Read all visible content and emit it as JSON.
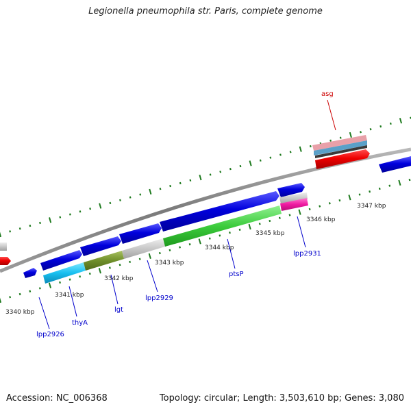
{
  "title": "Legionella pneumophila str. Paris, complete genome",
  "footer": {
    "accession": "Accession: NC_006368",
    "stats": "Topology: circular; Length: 3,503,610 bp; Genes: 3,080"
  },
  "colors": {
    "backbone": "#8a8a8a",
    "tick": "#1e7a1e",
    "cds_forward": "#0000dd",
    "cds_reverse": "#ee0000",
    "gene_label": "#0000cc",
    "rna_label": "#cc0000"
  },
  "kbp_labels": [
    "3340 kbp",
    "3341 kbp",
    "3342 kbp",
    "3343 kbp",
    "3344 kbp",
    "3345 kbp",
    "3346 kbp",
    "3347 kbp"
  ],
  "gene_labels": [
    "lpp2926",
    "thyA",
    "lgt",
    "lpp2929",
    "ptsP",
    "lpp2931",
    "asg"
  ]
}
